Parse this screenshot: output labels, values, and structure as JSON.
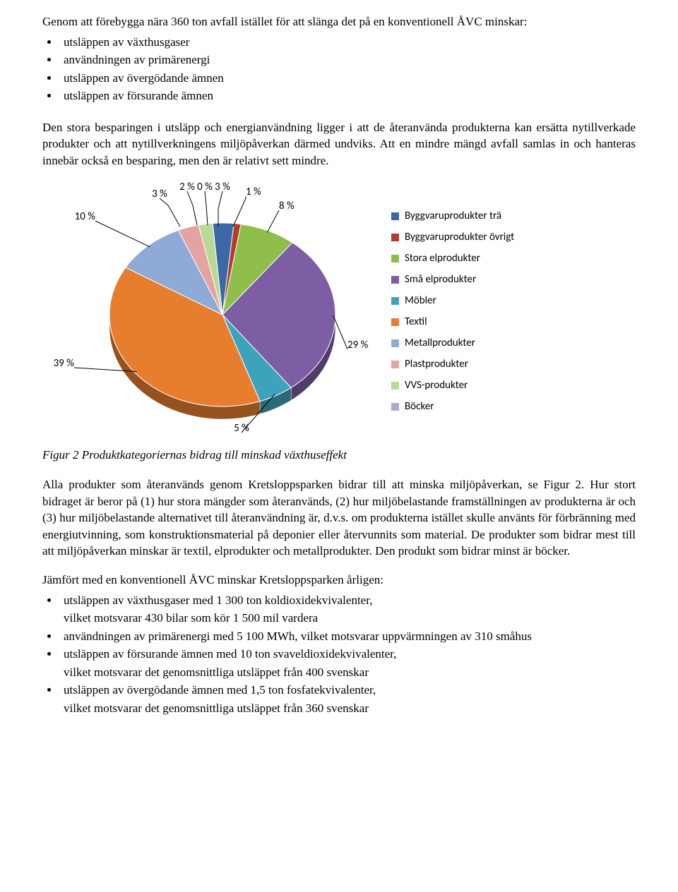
{
  "intro": "Genom att förebygga nära 360 ton avfall istället för att slänga det på en konventionell ÅVC minskar:",
  "bullets1": [
    "utsläppen av växthusgaser",
    "användningen av primärenergi",
    "utsläppen av övergödande ämnen",
    "utsläppen av försurande ämnen"
  ],
  "para1": "Den stora besparingen i utsläpp och energianvändning ligger i att de återanvända produkterna kan ersätta nytillverkade produkter och att nytillverkningens miljöpåverkan därmed undviks. Att en mindre mängd avfall samlas in och hanteras innebär också en besparing, men den är relativt sett mindre.",
  "chart": {
    "type": "pie",
    "background_color": "#ffffff",
    "slices": [
      {
        "label": "Byggvaruprodukter trä",
        "pct": 3,
        "pct_label": "3 %",
        "color": "#3b68a6"
      },
      {
        "label": "Byggvaruprodukter övrigt",
        "pct": 1,
        "pct_label": "1 %",
        "color": "#b23b2e"
      },
      {
        "label": "Stora elprodukter",
        "pct": 8,
        "pct_label": "8 %",
        "color": "#8fbf4a"
      },
      {
        "label": "Små elprodukter",
        "pct": 29,
        "pct_label": "29 %",
        "color": "#7d5da3"
      },
      {
        "label": "Möbler",
        "pct": 5,
        "pct_label": "5 %",
        "color": "#3da3bb"
      },
      {
        "label": "Textil",
        "pct": 39,
        "pct_label": "39 %",
        "color": "#e77e2e"
      },
      {
        "label": "Metallprodukter",
        "pct": 10,
        "pct_label": "10 %",
        "color": "#8faad6"
      },
      {
        "label": "Plastprodukter",
        "pct": 3,
        "pct_label": "3 %",
        "color": "#e4a3a2"
      },
      {
        "label": "VVS-produkter",
        "pct": 2,
        "pct_label": "2 %",
        "color": "#b9da95"
      },
      {
        "label": "Böcker",
        "pct": 0,
        "pct_label": "0 %",
        "color": "#b4a6cc"
      }
    ],
    "label_fontsize": 15,
    "legend_fontsize": 15
  },
  "caption": "Figur 2 Produktkategoriernas bidrag till minskad växthuseffekt",
  "para2": "Alla produkter som återanvänds genom Kretsloppsparken bidrar till att minska miljöpåverkan, se Figur 2. Hur stort bidraget är beror på (1) hur stora mängder som återanvänds, (2) hur miljöbelastande framställningen av produkterna är och (3) hur miljöbelastande alternativet till återanvändning är, d.v.s. om produkterna istället skulle använts för förbränning med energiutvinning, som konstruktionsmaterial på deponier eller återvunnits som material. De produkter som bidrar mest till att miljöpåverkan minskar är textil, elprodukter och metallprodukter. Den produkt som bidrar minst är böcker.",
  "intro2": "Jämfört med en konventionell ÅVC minskar Kretsloppsparken årligen:",
  "bullets2": [
    "utsläppen av växthusgaser med 1 300 ton koldioxidekvivalenter,\nvilket motsvarar 430 bilar som kör 1 500 mil vardera",
    "användningen av primärenergi med 5 100 MWh, vilket motsvarar uppvärmningen av 310 småhus",
    "utsläppen av försurande ämnen med 10 ton svaveldioxidekvivalenter,\nvilket motsvarar det genomsnittliga utsläppet från 400 svenskar",
    "utsläppen av övergödande ämnen med 1,5 ton fosfatekvivalenter,\nvilket motsvarar det genomsnittliga utsläppet från 360 svenskar"
  ]
}
